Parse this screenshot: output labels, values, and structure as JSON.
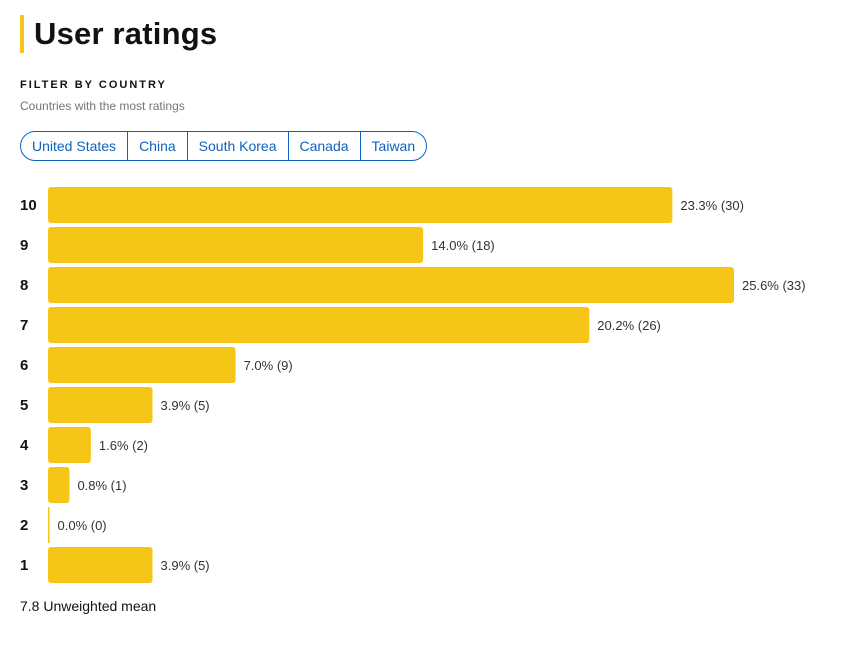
{
  "header": {
    "title": "User ratings"
  },
  "filter": {
    "heading": "FILTER BY COUNTRY",
    "subtitle": "Countries with the most ratings",
    "countries": [
      "United States",
      "China",
      "South Korea",
      "Canada",
      "Taiwan"
    ]
  },
  "chart_data": {
    "type": "bar",
    "orientation": "horizontal",
    "categories": [
      "10",
      "9",
      "8",
      "7",
      "6",
      "5",
      "4",
      "3",
      "2",
      "1"
    ],
    "values": [
      23.3,
      14.0,
      25.6,
      20.2,
      7.0,
      3.9,
      1.6,
      0.8,
      0.0,
      3.9
    ],
    "counts": [
      30,
      18,
      33,
      26,
      9,
      5,
      2,
      1,
      0,
      5
    ],
    "labels": [
      "23.3% (30)",
      "14.0% (18)",
      "25.6% (33)",
      "20.2% (26)",
      "7.0% (9)",
      "3.9% (5)",
      "1.6% (2)",
      "0.8% (1)",
      "0.0% (0)",
      "3.9% (5)"
    ],
    "bar_color": "#f5c518",
    "grid": false
  },
  "summary": {
    "mean_text": "7.8 Unweighted mean"
  }
}
